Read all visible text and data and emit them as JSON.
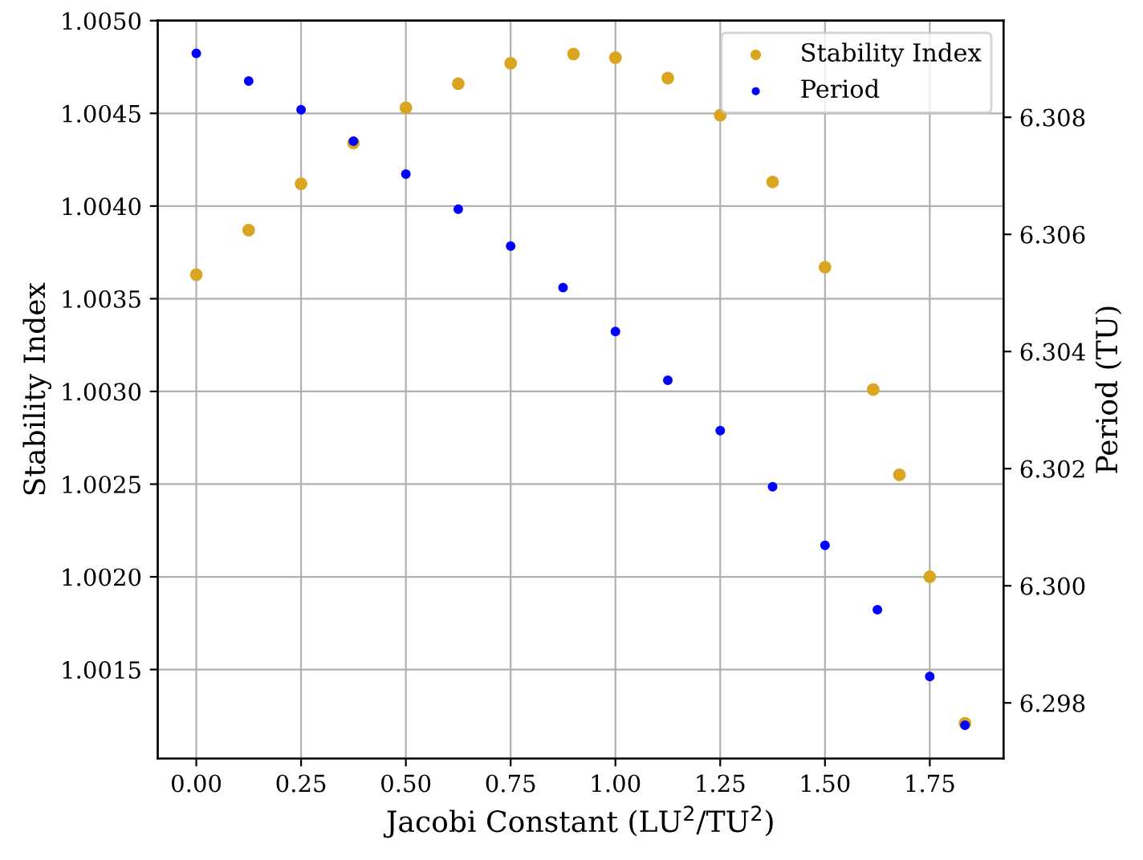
{
  "chart_data": {
    "type": "scatter",
    "xlabel": "Jacobi Constant (LU$^{2}$/TU$^{2}$)",
    "ylabel": "Stability Index",
    "y2label": "Period (TU)",
    "series": [
      {
        "name": "Stability Index",
        "color": "#daa520",
        "axis": "y",
        "x": [
          0,
          0.125,
          0.25,
          0.375,
          0.5,
          0.625,
          0.75,
          0.9,
          1.0,
          1.125,
          1.25,
          1.375,
          1.5,
          1.615,
          1.6775,
          1.75,
          1.834
        ],
        "values": [
          1.00363,
          1.00387,
          1.00412,
          1.00434,
          1.00453,
          1.00466,
          1.00477,
          1.00482,
          1.0048,
          1.00469,
          1.00449,
          1.00413,
          1.00367,
          1.00301,
          1.00255,
          1.002,
          1.00121
        ]
      },
      {
        "name": "Period",
        "color": "#0000ff",
        "axis": "y2",
        "x": [
          0,
          0.125,
          0.25,
          0.375,
          0.5,
          0.625,
          0.75,
          0.875,
          1.0,
          1.125,
          1.25,
          1.375,
          1.5,
          1.625,
          1.75,
          1.834
        ],
        "values": [
          6.30909,
          6.30862,
          6.30813,
          6.30759,
          6.30703,
          6.30643,
          6.3058,
          6.30509,
          6.30434,
          6.30351,
          6.30265,
          6.30169,
          6.30069,
          6.29959,
          6.29845,
          6.29762
        ]
      }
    ],
    "xlim": [
      -0.092,
      1.926
    ],
    "xticks": [
      {
        "value": 0,
        "label": "0.00"
      },
      {
        "value": 0.25,
        "label": "0.25"
      },
      {
        "value": 0.5,
        "label": "0.50"
      },
      {
        "value": 0.75,
        "label": "0.75"
      },
      {
        "value": 1.0,
        "label": "1.00"
      },
      {
        "value": 1.25,
        "label": "1.25"
      },
      {
        "value": 1.5,
        "label": "1.50"
      },
      {
        "value": 1.75,
        "label": "1.75"
      }
    ],
    "ylim": [
      1.00102,
      1.005
    ],
    "yticks": [
      {
        "value": 1.0015,
        "label": "1.0015"
      },
      {
        "value": 1.002,
        "label": "1.0020"
      },
      {
        "value": 1.0025,
        "label": "1.0025"
      },
      {
        "value": 1.003,
        "label": "1.0030"
      },
      {
        "value": 1.0035,
        "label": "1.0035"
      },
      {
        "value": 1.004,
        "label": "1.0040"
      },
      {
        "value": 1.0045,
        "label": "1.0045"
      },
      {
        "value": 1.005,
        "label": "1.0050"
      }
    ],
    "y2lim": [
      6.29705,
      6.30965
    ],
    "y2ticks": [
      6.298,
      {
        "value": 6.3,
        "label": "6.300"
      },
      6.302,
      6.304,
      6.306,
      6.308
    ],
    "grid": true,
    "legend": "top right",
    "marker": "circle"
  }
}
